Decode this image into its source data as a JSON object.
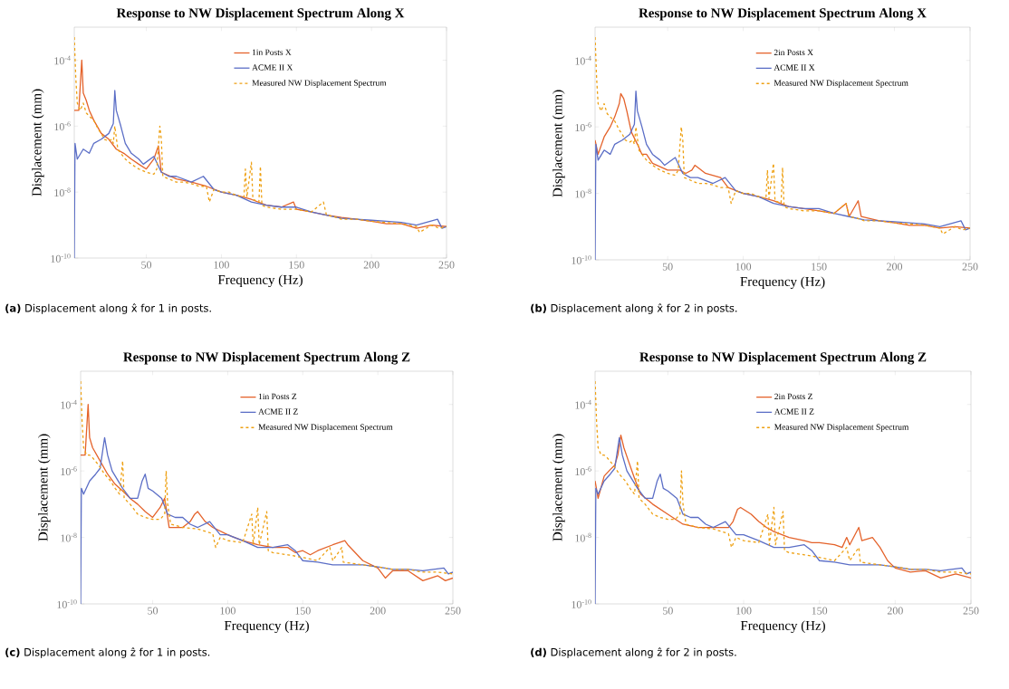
{
  "chart_data": [
    {
      "type": "line",
      "title": "Response to NW Displacement Spectrum Along X",
      "xlabel": "Frequency (Hz)",
      "ylabel": "Displacement (mm)",
      "log": "y",
      "legend": "top right",
      "xlim": [
        2,
        250
      ],
      "xticks": [
        50,
        100,
        150,
        200,
        250
      ],
      "ylim": [
        1e-10,
        0.001
      ],
      "yticks": [
        {
          "value": 1e-10,
          "label": "10$^{-10}$"
        },
        {
          "value": 1e-08,
          "label": "10$^{-8}$"
        },
        {
          "value": 1e-06,
          "label": "10$^{-6}$"
        },
        {
          "value": 0.0001,
          "label": "10$^{-4}$"
        }
      ],
      "annotations": [
        "**(a)** Displacement along x̂ for 1 in posts."
      ],
      "series": [
        {
          "name": "1in Posts X",
          "color": "#e4622a",
          "x": [
            2,
            5,
            7,
            8,
            10,
            12,
            15,
            20,
            25,
            30,
            35,
            40,
            45,
            50,
            55,
            58,
            60,
            70,
            80,
            90,
            100,
            110,
            120,
            130,
            140,
            148,
            150,
            160,
            170,
            180,
            190,
            200,
            210,
            220,
            230,
            240,
            250
          ],
          "values": [
            3e-06,
            3e-06,
            0.0001,
            1e-05,
            6e-06,
            3e-06,
            1.5e-06,
            6e-07,
            4e-07,
            2e-07,
            1.5e-07,
            1e-07,
            7e-08,
            5e-08,
            1e-07,
            2.5e-07,
            4e-08,
            2.5e-08,
            2e-08,
            1.5e-08,
            1e-08,
            8e-09,
            6e-09,
            4e-09,
            3.5e-09,
            5e-09,
            3e-09,
            2.5e-09,
            2e-09,
            1.7e-09,
            1.5e-09,
            1.3e-09,
            1.1e-09,
            1.1e-09,
            8e-10,
            1e-09,
            9e-10
          ]
        },
        {
          "name": "ACME II X",
          "color": "#5b6ec6",
          "x": [
            2,
            2.5,
            4,
            8,
            12,
            15,
            20,
            25,
            28,
            29,
            30,
            33,
            36,
            40,
            45,
            48,
            55,
            60,
            65,
            70,
            80,
            88,
            95,
            100,
            110,
            120,
            130,
            140,
            150,
            160,
            170,
            180,
            190,
            200,
            210,
            220,
            230,
            244,
            247,
            250
          ],
          "values": [
            1e-10,
            3e-07,
            1e-07,
            2e-07,
            1.5e-07,
            3e-07,
            4e-07,
            6e-07,
            1.2e-06,
            1.2e-05,
            3e-06,
            1e-06,
            3e-07,
            1.5e-07,
            1e-07,
            7e-08,
            1.2e-07,
            4e-08,
            3e-08,
            3e-08,
            2e-08,
            3e-08,
            1.2e-08,
            1e-08,
            8e-09,
            5e-09,
            4e-09,
            3.5e-09,
            3.5e-09,
            2.5e-09,
            2e-09,
            1.6e-09,
            1.5e-09,
            1.4e-09,
            1.3e-09,
            1.2e-09,
            1e-09,
            1.5e-09,
            8e-10,
            9e-10
          ]
        },
        {
          "name": "Measured NW Displacement Spectrum",
          "color": "#eea012",
          "line_style": "dashed",
          "x": [
            2,
            3,
            4,
            6,
            8,
            10,
            12,
            15,
            18,
            20,
            22,
            25,
            27,
            28,
            29,
            31,
            33,
            36,
            40,
            45,
            50,
            55,
            57,
            59,
            60,
            61,
            65,
            70,
            75,
            80,
            85,
            90,
            92,
            95,
            100,
            105,
            110,
            115,
            116,
            117,
            120,
            121,
            125,
            126,
            127,
            130,
            140,
            150,
            160,
            168,
            170,
            175,
            180,
            190,
            200,
            210,
            220,
            230,
            232,
            240,
            245,
            250
          ],
          "values": [
            0.0005,
            3e-05,
            5e-06,
            3e-06,
            5e-06,
            2.5e-06,
            2e-06,
            1.5e-06,
            8e-07,
            6e-07,
            4e-07,
            3.5e-07,
            4e-07,
            3e-07,
            1e-06,
            2e-07,
            1.5e-07,
            1e-07,
            7e-08,
            5e-08,
            4e-08,
            3.5e-08,
            5e-08,
            1e-06,
            4e-07,
            3e-08,
            2.5e-08,
            2e-08,
            2e-08,
            1.8e-08,
            1.5e-08,
            1.5e-08,
            5e-09,
            1.2e-08,
            1e-08,
            1e-08,
            8e-09,
            7e-09,
            5e-08,
            7e-09,
            8e-08,
            6e-09,
            5e-09,
            6e-08,
            4e-09,
            3.5e-09,
            3e-09,
            3e-09,
            2.5e-09,
            5e-09,
            2e-09,
            1.8e-09,
            1.5e-09,
            1.5e-09,
            1.3e-09,
            1.2e-09,
            1.1e-09,
            9e-10,
            6e-10,
            1e-09,
            8e-10,
            9e-10
          ]
        }
      ]
    },
    {
      "type": "line",
      "title": "Response to NW Displacement Spectrum Along X",
      "xlabel": "Frequency (Hz)",
      "ylabel": "Displacement (mm)",
      "log": "y",
      "legend": "top right",
      "xlim": [
        2,
        250
      ],
      "xticks": [
        50,
        100,
        150,
        200,
        250
      ],
      "ylim": [
        1e-10,
        0.001
      ],
      "yticks": [
        {
          "value": 1e-10,
          "label": "10$^{-10}$"
        },
        {
          "value": 1e-08,
          "label": "10$^{-8}$"
        },
        {
          "value": 1e-06,
          "label": "10$^{-6}$"
        },
        {
          "value": 0.0001,
          "label": "10$^{-4}$"
        }
      ],
      "annotations": [
        "**(b)** Displacement along x̂ for 2 in posts."
      ],
      "series": [
        {
          "name": "2in Posts X",
          "color": "#e4622a",
          "x": [
            2,
            4,
            8,
            12,
            15,
            18,
            19,
            21,
            23,
            26,
            30,
            33,
            36,
            40,
            50,
            58,
            62,
            66,
            68,
            70,
            75,
            85,
            90,
            100,
            110,
            120,
            130,
            140,
            150,
            160,
            168,
            170,
            176,
            178,
            190,
            200,
            210,
            220,
            230,
            240,
            250
          ],
          "values": [
            4e-07,
            1.5e-07,
            5e-07,
            1e-06,
            2e-06,
            5e-06,
            1e-05,
            7e-06,
            3e-06,
            7e-07,
            3e-07,
            1.5e-07,
            1.5e-07,
            8e-08,
            5e-08,
            5e-08,
            4e-08,
            5e-08,
            7e-08,
            6e-08,
            4e-08,
            3e-08,
            1.5e-08,
            1e-08,
            8e-09,
            6e-09,
            4e-09,
            3.5e-09,
            3e-09,
            2.5e-09,
            5e-09,
            2e-09,
            6e-09,
            2e-09,
            1.5e-09,
            1.3e-09,
            1.1e-09,
            1.1e-09,
            9e-10,
            1e-09,
            9e-10
          ]
        },
        {
          "name": "ACME II X",
          "color": "#5b6ec6",
          "x": [
            2,
            2.5,
            4,
            8,
            12,
            15,
            20,
            25,
            28,
            29,
            30,
            33,
            36,
            40,
            45,
            48,
            55,
            60,
            65,
            70,
            80,
            88,
            95,
            100,
            110,
            120,
            130,
            140,
            150,
            160,
            170,
            180,
            190,
            200,
            210,
            220,
            230,
            244,
            247,
            250
          ],
          "values": [
            1e-10,
            3e-07,
            1e-07,
            2e-07,
            1.5e-07,
            3e-07,
            4e-07,
            6e-07,
            1.2e-06,
            1.2e-05,
            3e-06,
            1e-06,
            3e-07,
            1.5e-07,
            1e-07,
            7e-08,
            1.2e-07,
            4e-08,
            3e-08,
            3e-08,
            2e-08,
            3e-08,
            1.2e-08,
            1e-08,
            8e-09,
            5e-09,
            4e-09,
            3.5e-09,
            3.5e-09,
            2.5e-09,
            2e-09,
            1.6e-09,
            1.5e-09,
            1.4e-09,
            1.3e-09,
            1.2e-09,
            1e-09,
            1.5e-09,
            8e-10,
            9e-10
          ]
        },
        {
          "name": "Measured NW Displacement Spectrum",
          "color": "#eea012",
          "line_style": "dashed",
          "x": [
            2,
            3,
            4,
            6,
            8,
            10,
            12,
            15,
            18,
            20,
            22,
            25,
            27,
            28,
            29,
            31,
            33,
            36,
            40,
            45,
            50,
            55,
            57,
            59,
            60,
            61,
            65,
            70,
            75,
            80,
            85,
            90,
            92,
            95,
            100,
            105,
            110,
            115,
            116,
            117,
            120,
            121,
            125,
            126,
            127,
            130,
            140,
            150,
            160,
            168,
            170,
            175,
            180,
            190,
            200,
            210,
            220,
            230,
            232,
            240,
            245,
            250
          ],
          "values": [
            0.0005,
            3e-05,
            5e-06,
            3e-06,
            5e-06,
            2.5e-06,
            2e-06,
            1.5e-06,
            8e-07,
            6e-07,
            4e-07,
            3.5e-07,
            4e-07,
            3e-07,
            1e-06,
            2e-07,
            1.5e-07,
            1e-07,
            7e-08,
            5e-08,
            4e-08,
            3.5e-08,
            5e-08,
            1e-06,
            4e-07,
            3e-08,
            2.5e-08,
            2e-08,
            2e-08,
            1.8e-08,
            1.5e-08,
            1.5e-08,
            5e-09,
            1.2e-08,
            1e-08,
            1e-08,
            8e-09,
            7e-09,
            5e-08,
            7e-09,
            8e-08,
            6e-09,
            5e-09,
            6e-08,
            4e-09,
            3.5e-09,
            3e-09,
            3e-09,
            2.5e-09,
            5e-09,
            2e-09,
            1.8e-09,
            1.5e-09,
            1.5e-09,
            1.3e-09,
            1.2e-09,
            1.1e-09,
            9e-10,
            6e-10,
            1e-09,
            8e-10,
            9e-10
          ]
        }
      ]
    },
    {
      "type": "line",
      "title": "Response to NW Displacement Spectrum Along Z",
      "xlabel": "Frequency (Hz)",
      "ylabel": "Displacement (mm)",
      "log": "y",
      "legend": "top right",
      "xlim": [
        2,
        250
      ],
      "xticks": [
        50,
        100,
        150,
        200,
        250
      ],
      "ylim": [
        1e-10,
        0.001
      ],
      "yticks": [
        {
          "value": 1e-10,
          "label": "10$^{-10}$"
        },
        {
          "value": 1e-08,
          "label": "10$^{-8}$"
        },
        {
          "value": 1e-06,
          "label": "10$^{-6}$"
        },
        {
          "value": 0.0001,
          "label": "10$^{-4}$"
        }
      ],
      "annotations": [
        "**(c)** Displacement along ẑ for 1 in posts."
      ],
      "series": [
        {
          "name": "1in Posts Z",
          "color": "#e4622a",
          "x": [
            2,
            5,
            7,
            8,
            10,
            15,
            20,
            25,
            30,
            35,
            40,
            45,
            50,
            55,
            58,
            61,
            65,
            70,
            75,
            78,
            80,
            85,
            90,
            100,
            110,
            120,
            130,
            140,
            145,
            150,
            155,
            160,
            170,
            178,
            180,
            190,
            200,
            205,
            210,
            220,
            230,
            240,
            245,
            250
          ],
          "values": [
            3e-06,
            3e-06,
            0.0001,
            1e-05,
            5e-06,
            2e-06,
            8e-07,
            4e-07,
            2.5e-07,
            1.5e-07,
            1e-07,
            6e-08,
            4e-08,
            8e-08,
            1.5e-07,
            2e-08,
            2e-08,
            2e-08,
            3e-08,
            5e-08,
            6e-08,
            3e-08,
            2e-08,
            1.2e-08,
            8e-09,
            6e-09,
            5e-09,
            5e-09,
            3.5e-09,
            4e-09,
            3e-09,
            4e-09,
            6e-09,
            8e-09,
            6e-09,
            2e-09,
            1.2e-09,
            6e-10,
            1e-09,
            1e-09,
            5e-10,
            7e-10,
            5e-10,
            6e-10
          ]
        },
        {
          "name": "ACME II Z",
          "color": "#5b6ec6",
          "x": [
            2,
            2.5,
            4,
            8,
            12,
            15,
            17,
            18,
            20,
            23,
            27,
            30,
            35,
            40,
            43,
            45,
            47,
            50,
            56,
            60,
            65,
            70,
            75,
            80,
            88,
            95,
            100,
            110,
            120,
            130,
            140,
            145,
            150,
            160,
            170,
            180,
            190,
            200,
            210,
            220,
            230,
            244,
            247,
            250
          ],
          "values": [
            1e-10,
            3e-07,
            2e-07,
            5e-07,
            8e-07,
            1.2e-06,
            5e-06,
            1e-05,
            3e-06,
            1e-06,
            5e-07,
            3e-07,
            1.5e-07,
            1.5e-07,
            5e-07,
            8e-07,
            3e-07,
            2.5e-07,
            1.5e-07,
            5e-08,
            4e-08,
            4e-08,
            2.5e-08,
            2e-08,
            3e-08,
            1.2e-08,
            1.2e-08,
            8e-09,
            5e-09,
            5e-09,
            6e-09,
            4e-09,
            2e-09,
            1.8e-09,
            1.5e-09,
            1.5e-09,
            1.5e-09,
            1.3e-09,
            1.1e-09,
            1.1e-09,
            1e-09,
            1.2e-09,
            8e-10,
            9e-10
          ]
        },
        {
          "name": "Measured NW Displacement Spectrum",
          "color": "#eea012",
          "line_style": "dashed",
          "x": [
            2,
            3,
            4,
            6,
            8,
            10,
            14,
            18,
            22,
            25,
            28,
            30,
            31,
            35,
            40,
            45,
            50,
            55,
            58,
            59,
            60,
            62,
            70,
            80,
            90,
            92,
            95,
            100,
            110,
            116,
            117,
            120,
            121,
            126,
            127,
            130,
            140,
            150,
            160,
            168,
            170,
            176,
            177,
            190,
            200,
            210,
            220,
            230,
            240,
            250
          ],
          "values": [
            0.0005,
            3e-05,
            5e-06,
            3e-06,
            3e-06,
            2.5e-06,
            1.5e-06,
            8e-07,
            5e-07,
            3e-07,
            2e-07,
            2e-06,
            1.5e-07,
            1e-07,
            5e-08,
            4e-08,
            3.5e-08,
            3.5e-08,
            5e-08,
            1e-06,
            1e-07,
            2.5e-08,
            2e-08,
            1.8e-08,
            1.3e-08,
            5e-09,
            1e-08,
            8e-09,
            7e-09,
            5e-08,
            6e-09,
            8e-08,
            6e-09,
            6e-08,
            4e-09,
            3.5e-09,
            3e-09,
            2.5e-09,
            2e-09,
            5e-09,
            2e-09,
            5e-09,
            1.8e-09,
            1.5e-09,
            1.3e-09,
            1.1e-09,
            1.1e-09,
            9e-10,
            9e-10,
            8e-10
          ]
        }
      ]
    },
    {
      "type": "line",
      "title": "Response to NW Displacement Spectrum Along Z",
      "xlabel": "Frequency (Hz)",
      "ylabel": "Displacement (mm)",
      "log": "y",
      "legend": "top right",
      "xlim": [
        2,
        250
      ],
      "xticks": [
        50,
        100,
        150,
        200,
        250
      ],
      "ylim": [
        1e-10,
        0.001
      ],
      "yticks": [
        {
          "value": 1e-10,
          "label": "10$^{-10}$"
        },
        {
          "value": 1e-08,
          "label": "10$^{-8}$"
        },
        {
          "value": 1e-06,
          "label": "10$^{-6}$"
        },
        {
          "value": 0.0001,
          "label": "10$^{-4}$"
        }
      ],
      "annotations": [
        "**(d)** Displacement along ẑ for 2 in posts."
      ],
      "series": [
        {
          "name": "2in Posts Z",
          "color": "#e4622a",
          "x": [
            2,
            4,
            8,
            12,
            15,
            17,
            19,
            21,
            24,
            28,
            32,
            40,
            50,
            60,
            70,
            80,
            90,
            93,
            96,
            98,
            105,
            110,
            115,
            120,
            130,
            140,
            145,
            150,
            160,
            165,
            168,
            170,
            176,
            178,
            185,
            190,
            195,
            200,
            210,
            220,
            230,
            240,
            250
          ],
          "values": [
            5e-07,
            1.5e-07,
            7e-07,
            1.1e-06,
            1.5e-06,
            3e-06,
            1.2e-05,
            5e-06,
            2e-06,
            6e-07,
            2e-07,
            1e-07,
            5e-08,
            2.5e-08,
            2e-08,
            2e-08,
            2e-08,
            3e-08,
            7e-08,
            8e-08,
            5e-08,
            3e-08,
            2e-08,
            1.5e-08,
            1e-08,
            8e-09,
            7e-09,
            7e-09,
            6e-09,
            5e-09,
            1e-08,
            6e-09,
            2e-08,
            8e-09,
            1e-08,
            5e-09,
            2e-09,
            1.2e-09,
            9e-10,
            1e-09,
            6e-10,
            8e-10,
            6e-10
          ]
        },
        {
          "name": "ACME II Z",
          "color": "#5b6ec6",
          "x": [
            2,
            2.5,
            4,
            8,
            12,
            15,
            17,
            18,
            20,
            23,
            27,
            30,
            35,
            40,
            43,
            45,
            47,
            50,
            56,
            60,
            65,
            70,
            75,
            80,
            88,
            95,
            100,
            110,
            120,
            130,
            140,
            145,
            150,
            160,
            170,
            180,
            190,
            200,
            210,
            220,
            230,
            244,
            247,
            250
          ],
          "values": [
            1e-10,
            3e-07,
            2e-07,
            5e-07,
            8e-07,
            1.2e-06,
            5e-06,
            1e-05,
            3e-06,
            1e-06,
            5e-07,
            3e-07,
            1.5e-07,
            1.5e-07,
            5e-07,
            8e-07,
            3e-07,
            2.5e-07,
            1.5e-07,
            5e-08,
            4e-08,
            4e-08,
            2.5e-08,
            2e-08,
            3e-08,
            1.2e-08,
            1.2e-08,
            8e-09,
            5e-09,
            5e-09,
            6e-09,
            4e-09,
            2e-09,
            1.8e-09,
            1.5e-09,
            1.5e-09,
            1.5e-09,
            1.3e-09,
            1.1e-09,
            1.1e-09,
            1e-09,
            1.2e-09,
            8e-10,
            9e-10
          ]
        },
        {
          "name": "Measured NW Displacement Spectrum",
          "color": "#eea012",
          "line_style": "dashed",
          "x": [
            2,
            3,
            4,
            6,
            8,
            10,
            14,
            18,
            22,
            25,
            28,
            30,
            31,
            35,
            40,
            45,
            50,
            55,
            58,
            59,
            60,
            62,
            70,
            80,
            90,
            92,
            95,
            100,
            110,
            116,
            117,
            120,
            121,
            126,
            127,
            130,
            140,
            150,
            160,
            168,
            170,
            176,
            177,
            190,
            200,
            210,
            220,
            230,
            240,
            250
          ],
          "values": [
            0.0005,
            3e-05,
            5e-06,
            3e-06,
            3e-06,
            2.5e-06,
            1.5e-06,
            8e-07,
            5e-07,
            3e-07,
            2e-07,
            2e-06,
            1.5e-07,
            1e-07,
            5e-08,
            4e-08,
            3.5e-08,
            3.5e-08,
            5e-08,
            1e-06,
            1e-07,
            2.5e-08,
            2e-08,
            1.8e-08,
            1.3e-08,
            5e-09,
            1e-08,
            8e-09,
            7e-09,
            5e-08,
            6e-09,
            8e-08,
            6e-09,
            6e-08,
            4e-09,
            3.5e-09,
            3e-09,
            2.5e-09,
            2e-09,
            5e-09,
            2e-09,
            5e-09,
            1.8e-09,
            1.5e-09,
            1.3e-09,
            1.1e-09,
            1.1e-09,
            9e-10,
            9e-10,
            8e-10
          ]
        }
      ]
    }
  ]
}
